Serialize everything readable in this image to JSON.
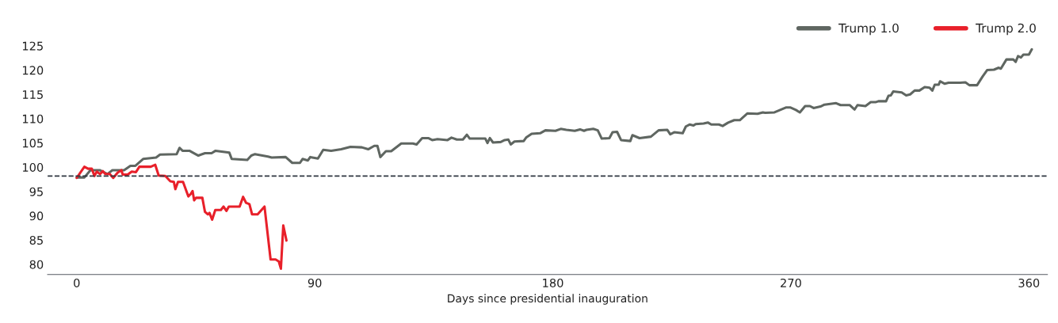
{
  "chart_data": {
    "type": "line",
    "xlabel": "Days since presidential inauguration",
    "xlim": [
      -11,
      367
    ],
    "xticks": [
      0,
      90,
      180,
      270,
      360
    ],
    "ylim": [
      77.9,
      125
    ],
    "yticks": [
      80,
      85,
      90,
      95,
      100,
      105,
      110,
      115,
      120,
      125
    ],
    "grid": false,
    "legend": "top right",
    "marker": "none",
    "line_style": "solid",
    "ref_lines": [
      {
        "axis": "y",
        "value": 98.2,
        "color": "#2f3640",
        "line_style": "dashed"
      }
    ],
    "series": [
      {
        "name": "Trump 1.0",
        "color": "#5f6661",
        "x": [
          0,
          2.9,
          5.2,
          8.7,
          11.6,
          13.5,
          17.9,
          20.3,
          22.2,
          25.1,
          30,
          31.5,
          37.8,
          38.9,
          40,
          42.6,
          46,
          48.5,
          51,
          52.5,
          57.7,
          58.6,
          64.5,
          66,
          67.4,
          72.3,
          73.7,
          79,
          81.5,
          84.4,
          85.4,
          87.4,
          88.3,
          91.2,
          93.2,
          96.2,
          100,
          103.5,
          107.8,
          110.2,
          112.5,
          113.7,
          114.8,
          116.9,
          118.9,
          122.7,
          127.1,
          128.5,
          130.6,
          132.9,
          134.4,
          136.4,
          140.2,
          141.7,
          143.7,
          146,
          147.5,
          148.6,
          151.5,
          154.5,
          155.3,
          156.2,
          157.4,
          160.3,
          161.8,
          163.2,
          164.1,
          165.5,
          169,
          169.9,
          172,
          175.2,
          177.2,
          181,
          183,
          185.1,
          188.3,
          190.3,
          191.8,
          192.7,
          195.3,
          197,
          198.5,
          201.4,
          202.6,
          204.3,
          205.8,
          209.3,
          210.1,
          212.8,
          217.1,
          220,
          223.3,
          224.4,
          225.9,
          229.1,
          230.3,
          231.7,
          233.2,
          234,
          237,
          238.7,
          239.9,
          242.8,
          244.2,
          246.3,
          248.6,
          250.7,
          253.6,
          257.4,
          259.4,
          260.3,
          263.8,
          268.1,
          269.9,
          271.9,
          273.4,
          275.4,
          277.2,
          278.6,
          281.2,
          282.7,
          287.1,
          288.8,
          292.3,
          294.1,
          295.2,
          298.2,
          300.2,
          302,
          303.1,
          306,
          306.9,
          307.8,
          308.7,
          311.9,
          313.6,
          315.1,
          316.8,
          318.6,
          320.6,
          322.4,
          323.5,
          324.4,
          325.9,
          326.4,
          328.2,
          329.6,
          334,
          336,
          337.5,
          340.4,
          342.5,
          344.2,
          346.8,
          348.6,
          349.4,
          351.5,
          354.1,
          355,
          355.9,
          357,
          357.9,
          360,
          361.1
        ],
        "values": [
          97.9,
          97.9,
          99.4,
          99.4,
          98.6,
          99.4,
          99.4,
          100.3,
          100.3,
          101.7,
          102.0,
          102.6,
          102.7,
          104.0,
          103.4,
          103.4,
          102.4,
          102.9,
          102.9,
          103.4,
          103.0,
          101.7,
          101.5,
          102.4,
          102.7,
          102.2,
          102.0,
          102.1,
          100.9,
          100.9,
          101.7,
          101.4,
          102.1,
          101.8,
          103.6,
          103.4,
          103.7,
          104.2,
          104.1,
          103.7,
          104.4,
          104.4,
          102.1,
          103.3,
          103.3,
          104.9,
          104.9,
          104.7,
          106.0,
          106.0,
          105.6,
          105.8,
          105.6,
          106.1,
          105.7,
          105.7,
          106.7,
          105.9,
          105.9,
          105.9,
          105.0,
          106.0,
          105.1,
          105.2,
          105.6,
          105.7,
          104.7,
          105.3,
          105.4,
          106.1,
          106.9,
          107.0,
          107.6,
          107.5,
          107.9,
          107.7,
          107.5,
          107.8,
          107.5,
          107.7,
          107.9,
          107.6,
          105.9,
          106.0,
          107.2,
          107.3,
          105.6,
          105.4,
          106.6,
          106.0,
          106.3,
          107.6,
          107.7,
          106.8,
          107.2,
          107.0,
          108.4,
          108.8,
          108.6,
          108.9,
          109.0,
          109.2,
          108.8,
          108.8,
          108.5,
          109.2,
          109.7,
          109.7,
          111.1,
          111.0,
          111.3,
          111.2,
          111.3,
          112.3,
          112.3,
          111.8,
          111.3,
          112.6,
          112.6,
          112.2,
          112.5,
          112.9,
          113.2,
          112.8,
          112.8,
          111.9,
          112.8,
          112.6,
          113.4,
          113.4,
          113.6,
          113.6,
          114.7,
          114.8,
          115.6,
          115.4,
          114.8,
          115.0,
          115.8,
          115.8,
          116.5,
          116.4,
          115.8,
          117.0,
          117.0,
          117.7,
          117.2,
          117.4,
          117.4,
          117.5,
          116.9,
          116.9,
          118.7,
          120.0,
          120.1,
          120.5,
          120.3,
          122.2,
          122.2,
          121.7,
          122.9,
          122.6,
          123.2,
          123.2,
          124.3
        ]
      },
      {
        "name": "Trump 2.0",
        "color": "#e8202a",
        "x": [
          0,
          2.9,
          4.3,
          5.7,
          6.7,
          7.6,
          8.8,
          9.9,
          10.8,
          12.5,
          13.8,
          15.5,
          16.9,
          17.4,
          19.3,
          20.8,
          22.4,
          23.7,
          28,
          29.7,
          31,
          33.5,
          35.4,
          36.7,
          37.3,
          38.3,
          40.2,
          42.2,
          43.1,
          43.8,
          44.4,
          45.1,
          47.5,
          48.5,
          49.6,
          50.2,
          51.2,
          52.4,
          54.5,
          55.5,
          56.6,
          57.5,
          61.6,
          62.9,
          64,
          65.3,
          66.3,
          68.4,
          71,
          73.3,
          75.2,
          76.4,
          77.2,
          78.1,
          79.3
        ],
        "values": [
          97.8,
          100.1,
          99.7,
          99.7,
          98.2,
          99.1,
          98.6,
          99.2,
          98.6,
          98.6,
          97.8,
          98.9,
          99.4,
          98.5,
          98.5,
          99.1,
          99.0,
          100.1,
          100.1,
          100.5,
          98.3,
          98.2,
          97.1,
          97.0,
          95.5,
          97.0,
          97.0,
          94.0,
          94.5,
          95.1,
          93.2,
          93.7,
          93.7,
          90.8,
          90.3,
          90.6,
          89.2,
          91.2,
          91.2,
          91.9,
          91.0,
          91.9,
          91.9,
          93.9,
          92.7,
          92.4,
          90.3,
          90.3,
          91.9,
          81.0,
          81.0,
          80.6,
          79.1,
          88.0,
          84.9
        ]
      }
    ]
  }
}
